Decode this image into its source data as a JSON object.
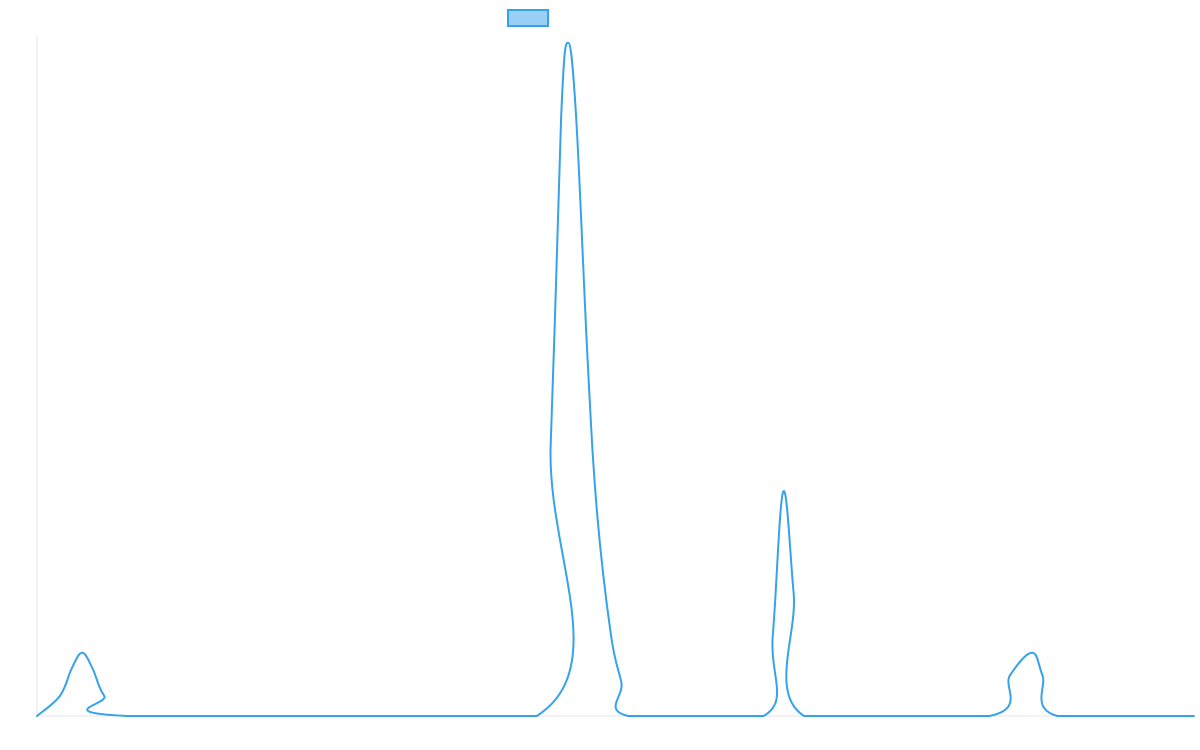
{
  "chart_data": {
    "type": "line",
    "title": "",
    "xlabel": "",
    "ylabel": "",
    "grid": false,
    "legend": {
      "placement": "top-center",
      "entries": [
        {
          "label": "",
          "color": "#36A2EB",
          "fill": "#9AD0F5"
        }
      ]
    },
    "xlim": [
      0,
      100
    ],
    "ylim": [
      0,
      100
    ],
    "series": [
      {
        "color": "#36A2EB",
        "points": [
          {
            "x": 0,
            "y": 0
          },
          {
            "x": 2,
            "y": 3
          },
          {
            "x": 3,
            "y": 7
          },
          {
            "x": 3.9,
            "y": 9.3
          },
          {
            "x": 4.8,
            "y": 7
          },
          {
            "x": 5.8,
            "y": 3
          },
          {
            "x": 7.8,
            "y": 0
          },
          {
            "x": 43.2,
            "y": 0
          },
          {
            "x": 44.4,
            "y": 40
          },
          {
            "x": 45.3,
            "y": 88
          },
          {
            "x": 45.9,
            "y": 99
          },
          {
            "x": 46.6,
            "y": 88
          },
          {
            "x": 47.6,
            "y": 52
          },
          {
            "x": 48.4,
            "y": 30
          },
          {
            "x": 49.6,
            "y": 12
          },
          {
            "x": 50.5,
            "y": 5
          },
          {
            "x": 51.1,
            "y": 0
          },
          {
            "x": 62.8,
            "y": 0
          },
          {
            "x": 63.6,
            "y": 12
          },
          {
            "x": 64.5,
            "y": 33
          },
          {
            "x": 65.4,
            "y": 18
          },
          {
            "x": 66.3,
            "y": 0
          },
          {
            "x": 82.3,
            "y": 0
          },
          {
            "x": 84.1,
            "y": 6
          },
          {
            "x": 86.0,
            "y": 9.3
          },
          {
            "x": 86.9,
            "y": 6
          },
          {
            "x": 88.2,
            "y": 0
          },
          {
            "x": 100,
            "y": 0
          }
        ]
      }
    ]
  }
}
